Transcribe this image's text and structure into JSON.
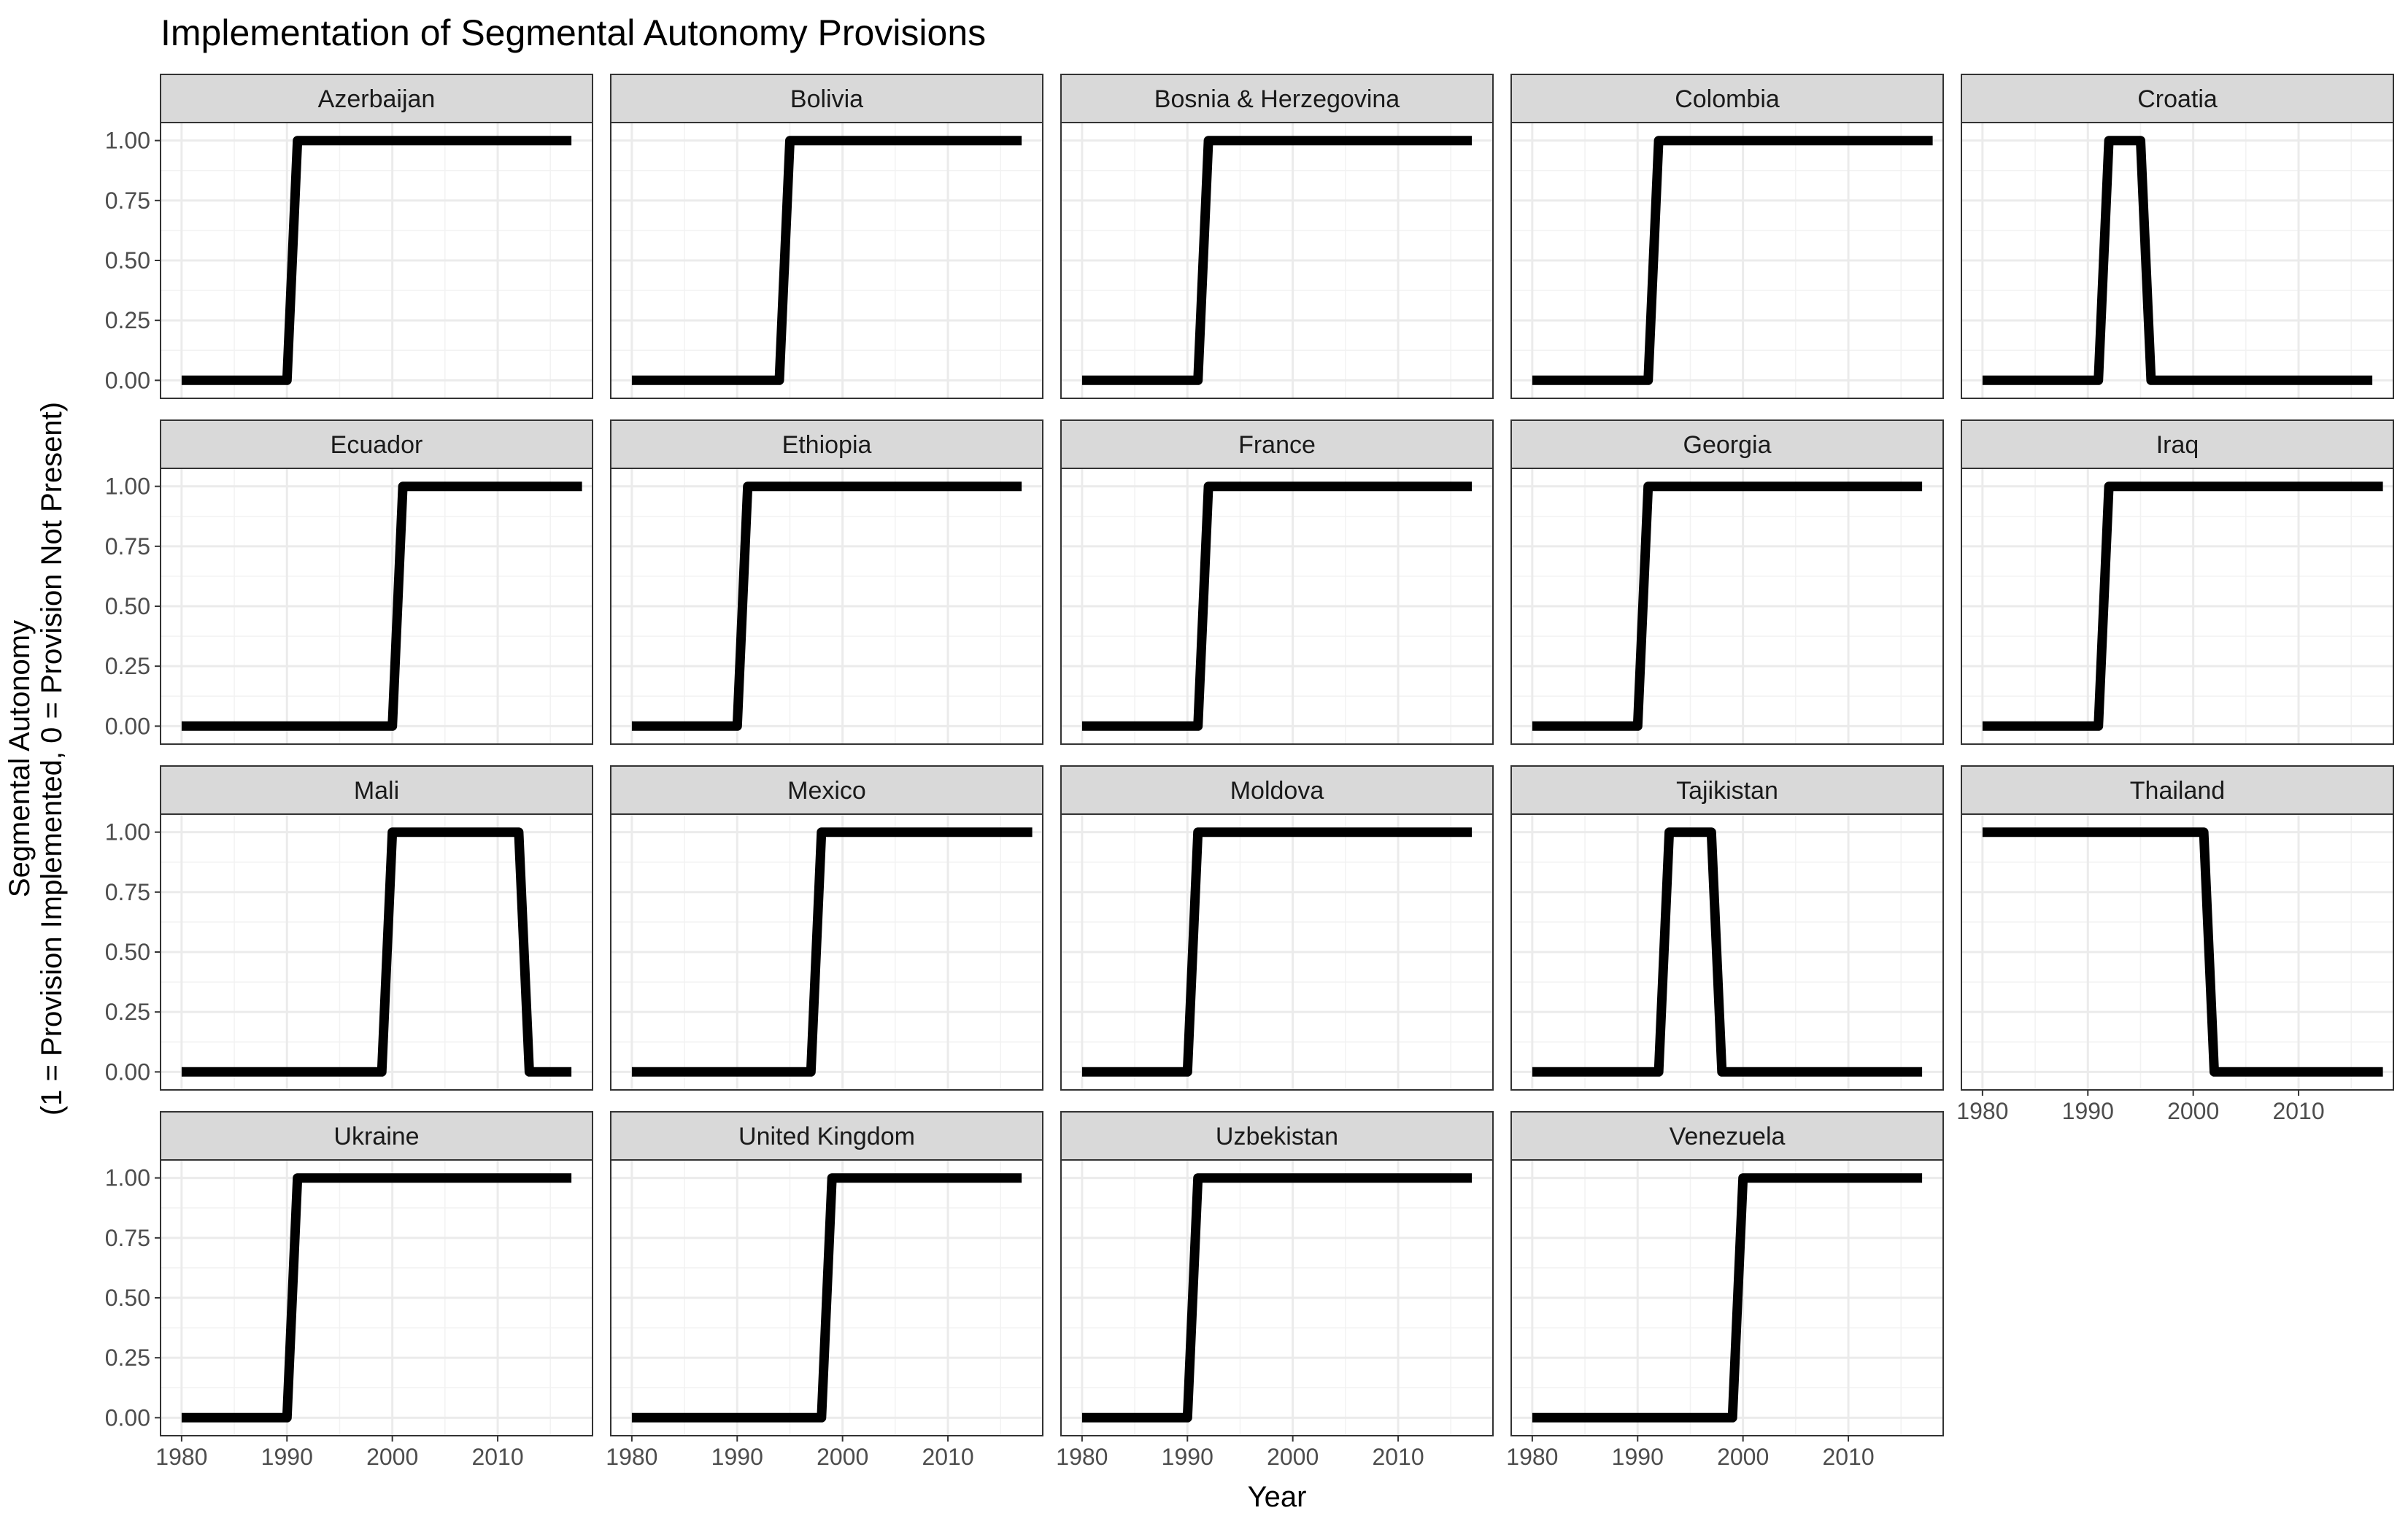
{
  "chart_data": {
    "type": "line",
    "title": "Implementation of Segmental Autonomy Provisions",
    "xlabel": "Year",
    "ylabel_lines": [
      "Segmental Autonomy",
      "(1 = Provision Implemented, 0 = Provision Not Present)"
    ],
    "xlim": [
      1978,
      2019
    ],
    "ylim": [
      -0.075,
      1.075
    ],
    "x_ticks": [
      1980,
      1990,
      2000,
      2010
    ],
    "y_ticks": [
      0,
      0.25,
      0.5,
      0.75,
      1
    ],
    "y_tick_labels": [
      "0.00",
      "0.25",
      "0.50",
      "0.75",
      "1.00"
    ],
    "grid": true,
    "layout": "facet_wrap 5 columns",
    "line_color": "#000000",
    "series": [
      {
        "name": "Azerbaijan",
        "x": [
          1980,
          1990,
          1991,
          2017
        ],
        "y": [
          0,
          0,
          1,
          1
        ]
      },
      {
        "name": "Bolivia",
        "x": [
          1980,
          1994,
          1995,
          2017
        ],
        "y": [
          0,
          0,
          1,
          1
        ]
      },
      {
        "name": "Bosnia & Herzegovina",
        "x": [
          1980,
          1991,
          1992,
          2017
        ],
        "y": [
          0,
          0,
          1,
          1
        ]
      },
      {
        "name": "Colombia",
        "x": [
          1980,
          1991,
          1992,
          2018
        ],
        "y": [
          0,
          0,
          1,
          1
        ]
      },
      {
        "name": "Croatia",
        "x": [
          1980,
          1991,
          1992,
          1995,
          1996,
          2017
        ],
        "y": [
          0,
          0,
          1,
          1,
          0,
          0
        ]
      },
      {
        "name": "Ecuador",
        "x": [
          1980,
          2000,
          2001,
          2018
        ],
        "y": [
          0,
          0,
          1,
          1
        ]
      },
      {
        "name": "Ethiopia",
        "x": [
          1980,
          1990,
          1991,
          2017
        ],
        "y": [
          0,
          0,
          1,
          1
        ]
      },
      {
        "name": "France",
        "x": [
          1980,
          1991,
          1992,
          2017
        ],
        "y": [
          0,
          0,
          1,
          1
        ]
      },
      {
        "name": "Georgia",
        "x": [
          1980,
          1990,
          1991,
          2017
        ],
        "y": [
          0,
          0,
          1,
          1
        ]
      },
      {
        "name": "Iraq",
        "x": [
          1980,
          1991,
          1992,
          2018
        ],
        "y": [
          0,
          0,
          1,
          1
        ]
      },
      {
        "name": "Mali",
        "x": [
          1980,
          1999,
          2000,
          2012,
          2013,
          2017
        ],
        "y": [
          0,
          0,
          1,
          1,
          0,
          0
        ]
      },
      {
        "name": "Mexico",
        "x": [
          1980,
          1997,
          1998,
          2018
        ],
        "y": [
          0,
          0,
          1,
          1
        ]
      },
      {
        "name": "Moldova",
        "x": [
          1980,
          1990,
          1991,
          2017
        ],
        "y": [
          0,
          0,
          1,
          1
        ]
      },
      {
        "name": "Tajikistan",
        "x": [
          1980,
          1992,
          1993,
          1997,
          1998,
          2017
        ],
        "y": [
          0,
          0,
          1,
          1,
          0,
          0
        ]
      },
      {
        "name": "Thailand",
        "x": [
          1980,
          2001,
          2002,
          2018
        ],
        "y": [
          1,
          1,
          0,
          0
        ]
      },
      {
        "name": "Ukraine",
        "x": [
          1980,
          1990,
          1991,
          2017
        ],
        "y": [
          0,
          0,
          1,
          1
        ]
      },
      {
        "name": "United Kingdom",
        "x": [
          1980,
          1998,
          1999,
          2017
        ],
        "y": [
          0,
          0,
          1,
          1
        ]
      },
      {
        "name": "Uzbekistan",
        "x": [
          1980,
          1990,
          1991,
          2017
        ],
        "y": [
          0,
          0,
          1,
          1
        ]
      },
      {
        "name": "Venezuela",
        "x": [
          1980,
          1999,
          2000,
          2017
        ],
        "y": [
          0,
          0,
          1,
          1
        ]
      }
    ]
  }
}
